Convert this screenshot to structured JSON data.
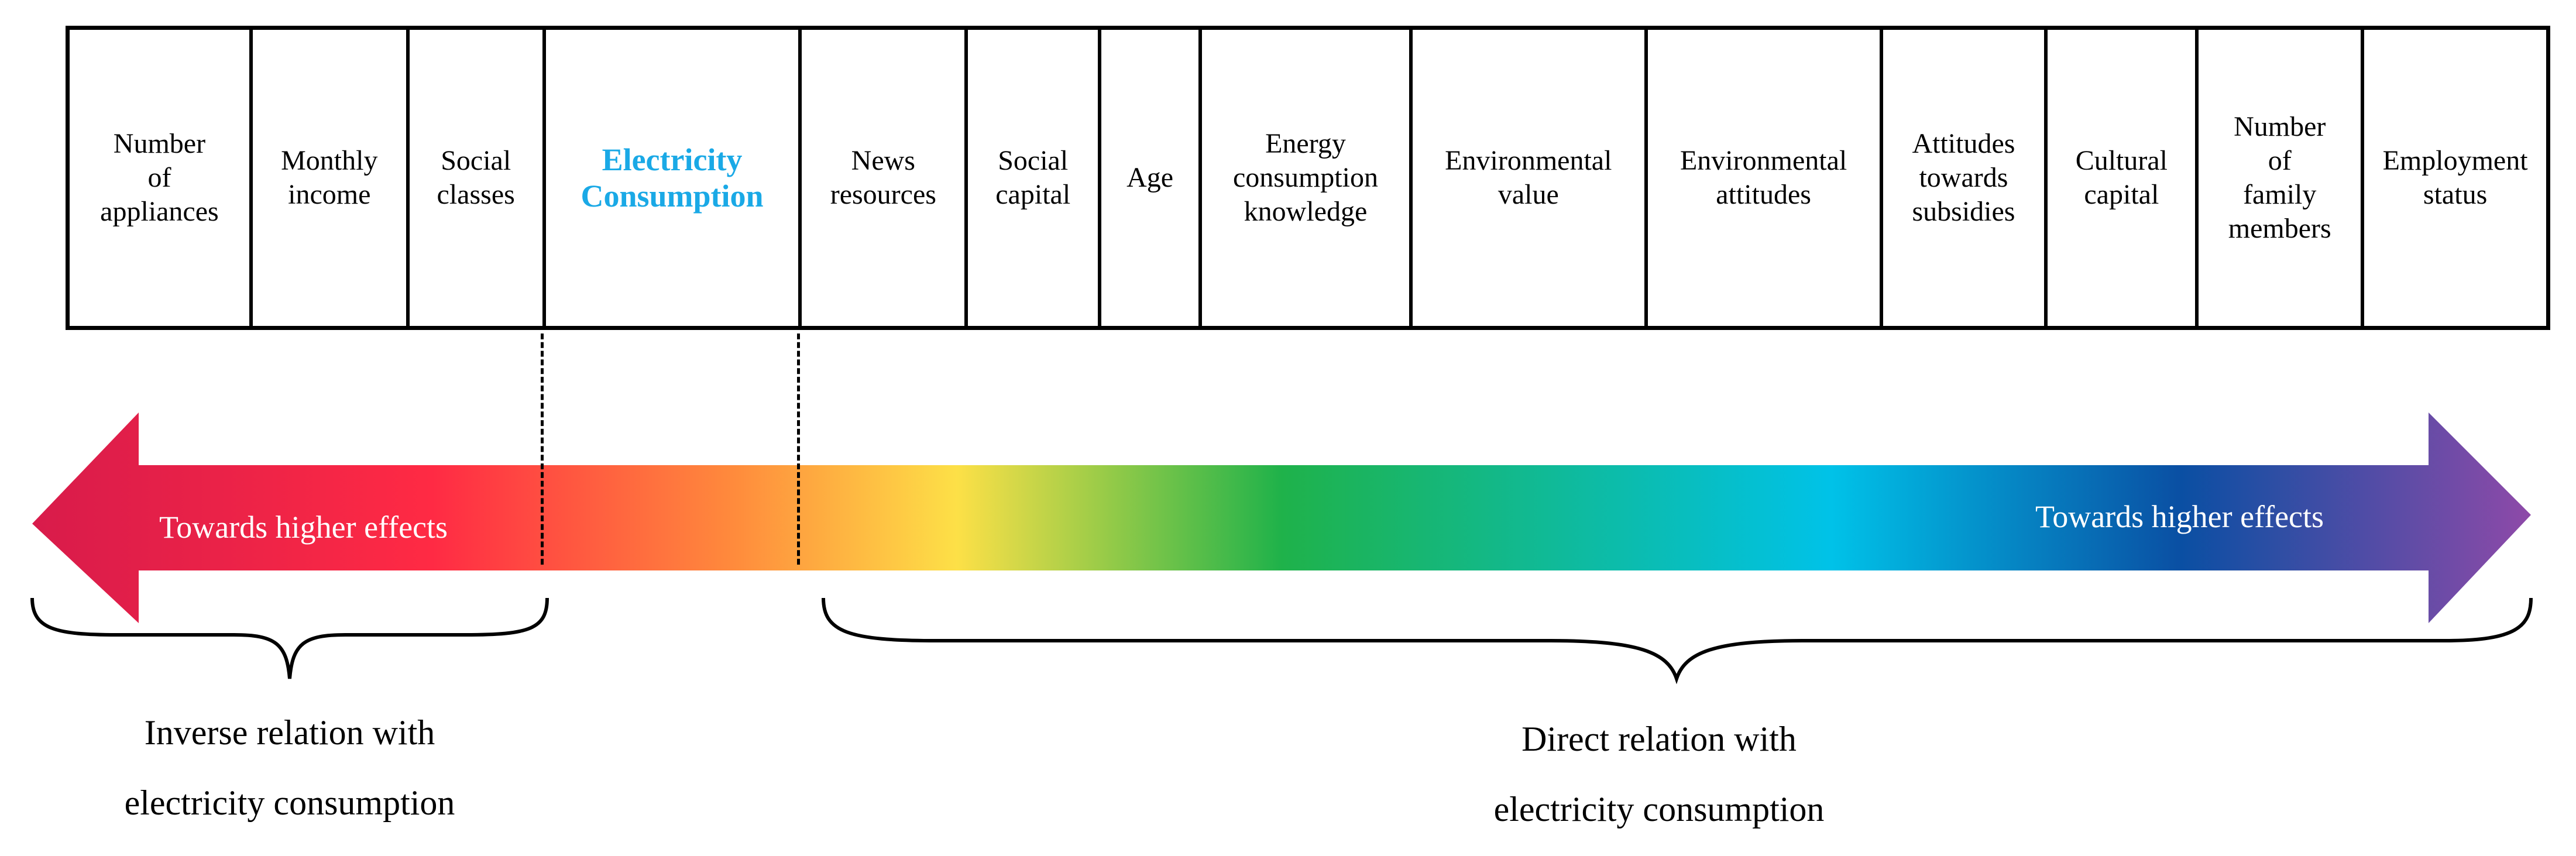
{
  "factors": [
    {
      "label": "Number\nof\nappliances"
    },
    {
      "label": "Monthly\nincome"
    },
    {
      "label": "Social\nclasses"
    },
    {
      "label": "Electricity\nConsumption",
      "highlight": true
    },
    {
      "label": "News\nresources"
    },
    {
      "label": "Social\ncapital"
    },
    {
      "label": "Age"
    },
    {
      "label": "Energy\nconsumption\nknowledge"
    },
    {
      "label": "Environmental\nvalue"
    },
    {
      "label": "Environmental\nattitudes"
    },
    {
      "label": "Attitudes\ntowards\nsubsidies"
    },
    {
      "label": "Cultural\ncapital"
    },
    {
      "label": "Number\nof\nfamily\nmembers"
    },
    {
      "label": "Employment\nstatus"
    }
  ],
  "arrow": {
    "left_label": "Towards higher effects",
    "right_label": "Towards higher effects",
    "gradient_colors": [
      "#d81b4b",
      "#ff2a44",
      "#ff8a3c",
      "#fde047",
      "#1fb24a",
      "#00c2e8",
      "#0a4fa3",
      "#8e4aa8"
    ]
  },
  "highlight_color": "#1aa9e6",
  "captions": {
    "inverse": "Inverse relation with\nelectricity consumption",
    "direct": "Direct relation with\nelectricity consumption"
  }
}
